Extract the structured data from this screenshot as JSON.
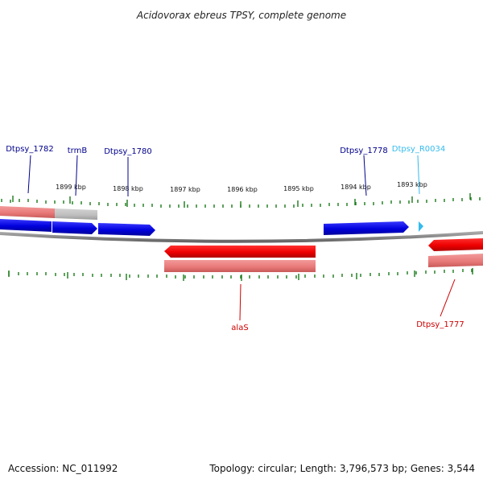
{
  "title": "Acidovorax ebreus TPSY, complete genome",
  "footer": {
    "accession": "Accession: NC_011992",
    "summary": "Topology: circular; Length: 3,796,573 bp; Genes: 3,544"
  },
  "colors": {
    "forward_gene": "#0000dd",
    "reverse_gene": "#ee0000",
    "forward_label": "#00008b",
    "reverse_label": "#cc0000",
    "rna_gene": "#33bbee",
    "backbone": "#888888",
    "ticks": "#1a7a1a"
  },
  "scale_labels": [
    "1899 kbp",
    "1898 kbp",
    "1897 kbp",
    "1896 kbp",
    "1895 kbp",
    "1894 kbp",
    "1893 kbp"
  ],
  "genes": [
    {
      "name": "Dtpsy_1782",
      "kind": "forward"
    },
    {
      "name": "trmB",
      "kind": "forward"
    },
    {
      "name": "Dtpsy_1780",
      "kind": "forward"
    },
    {
      "name": "Dtpsy_1778",
      "kind": "forward"
    },
    {
      "name": "Dtpsy_R0034",
      "kind": "rna"
    },
    {
      "name": "alaS",
      "kind": "reverse"
    },
    {
      "name": "Dtpsy_1777",
      "kind": "reverse"
    }
  ]
}
